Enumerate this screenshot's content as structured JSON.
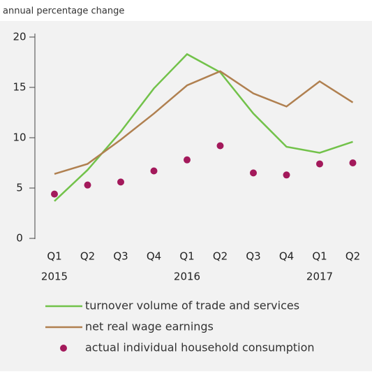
{
  "chart_data": {
    "type": "line",
    "subtitle": "annual percentage change",
    "categories": [
      "Q1",
      "Q2",
      "Q3",
      "Q4",
      "Q1",
      "Q2",
      "Q3",
      "Q4",
      "Q1",
      "Q2"
    ],
    "years": [
      "2015",
      null,
      null,
      null,
      "2016",
      null,
      null,
      null,
      "2017",
      null
    ],
    "ylim": [
      0,
      20
    ],
    "yticks": [
      0,
      5,
      10,
      15,
      20
    ],
    "series": [
      {
        "name": "turnover volume of trade and services",
        "color": "#72c24a",
        "style": "line",
        "values": [
          3.7,
          6.8,
          10.6,
          14.9,
          18.3,
          16.5,
          12.4,
          9.1,
          8.5,
          9.6
        ]
      },
      {
        "name": "net real wage earnings",
        "color": "#b08050",
        "style": "line",
        "values": [
          6.4,
          7.4,
          9.8,
          12.4,
          15.2,
          16.6,
          14.4,
          13.1,
          15.6,
          13.5
        ]
      },
      {
        "name": "actual individual household consumption",
        "color": "#a3195b",
        "style": "dots",
        "values": [
          4.4,
          5.3,
          5.6,
          6.7,
          7.8,
          9.2,
          6.5,
          6.3,
          7.4,
          7.5
        ]
      }
    ]
  }
}
